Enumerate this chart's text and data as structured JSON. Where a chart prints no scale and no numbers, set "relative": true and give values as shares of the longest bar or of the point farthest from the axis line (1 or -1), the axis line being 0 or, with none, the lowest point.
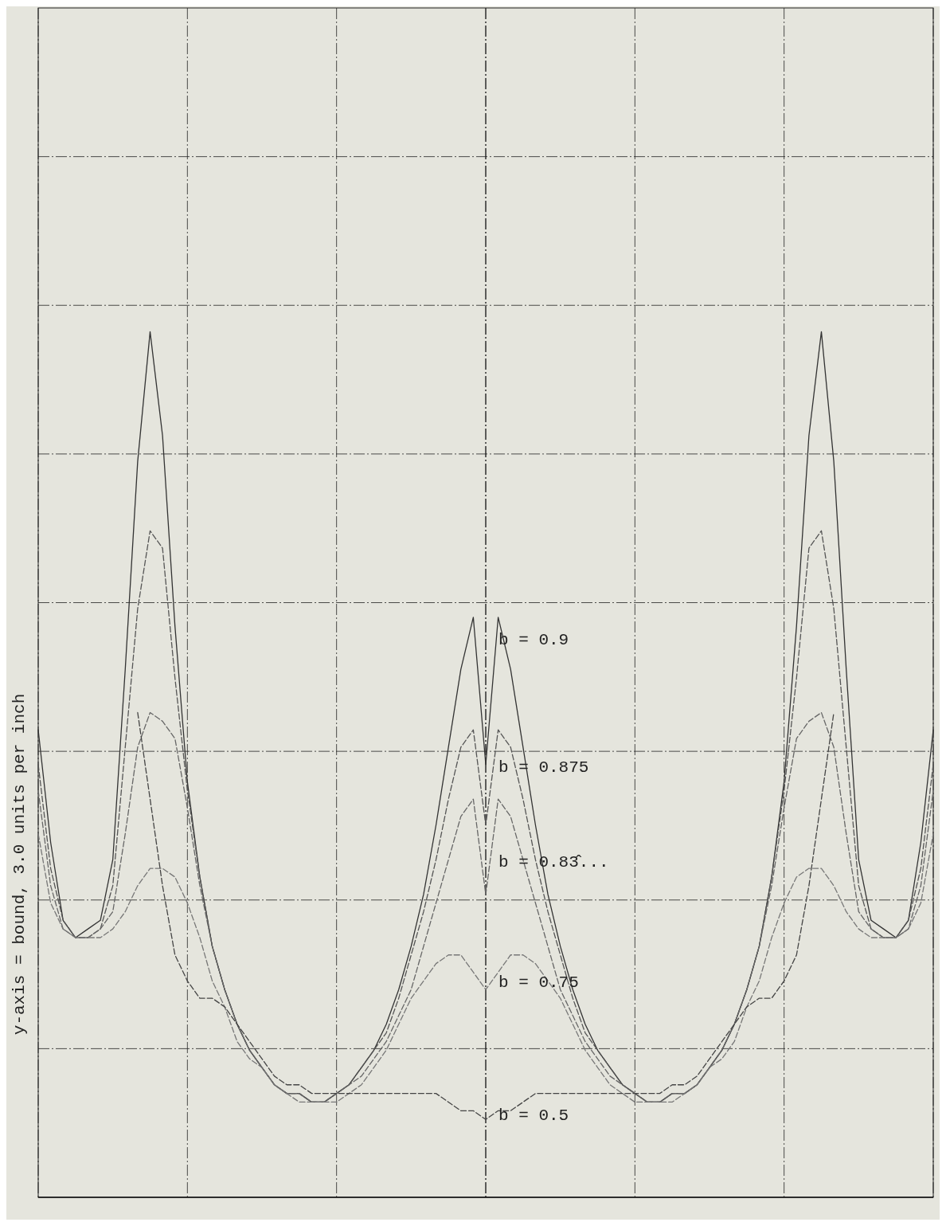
{
  "chart_data": {
    "type": "line",
    "relative": true,
    "ylabel": "y-axis = bound, 3.0 units per inch",
    "grid": true,
    "legend": false,
    "marker": "none",
    "categories": [
      null,
      null,
      null,
      null,
      null,
      null,
      null,
      null,
      null,
      null,
      null,
      null,
      null,
      null,
      null,
      null,
      null,
      null,
      null,
      null,
      null,
      null,
      null,
      null,
      null,
      null,
      null,
      null,
      null,
      null,
      null,
      null,
      null,
      null,
      null,
      null,
      null,
      null,
      null,
      null,
      null,
      null,
      null,
      null,
      null,
      null,
      null,
      null,
      null,
      null,
      null,
      null,
      null,
      null,
      null,
      null,
      null,
      null,
      null,
      null,
      null,
      null,
      null,
      null,
      null,
      null,
      null,
      null,
      null,
      null,
      null,
      null,
      null
    ],
    "series": [
      {
        "name": "b = 0.9",
        "color": "#333333",
        "line_style": "solid",
        "values": [
          0.54,
          0.41,
          0.32,
          0.3,
          0.31,
          0.32,
          0.39,
          0.61,
          0.85,
          1,
          0.88,
          0.66,
          0.48,
          0.37,
          0.29,
          0.24,
          0.2,
          0.17,
          0.15,
          0.13,
          0.12,
          0.12,
          0.11,
          0.11,
          0.12,
          0.13,
          0.15,
          0.17,
          0.2,
          0.24,
          0.29,
          0.35,
          0.43,
          0.52,
          0.61,
          0.67,
          0.5,
          0.67,
          0.61,
          0.52,
          0.43,
          0.35,
          0.29,
          0.24,
          0.2,
          0.17,
          0.15,
          0.13,
          0.12,
          0.11,
          0.11,
          0.12,
          0.12,
          0.13,
          0.15,
          0.17,
          0.2,
          0.24,
          0.29,
          0.37,
          0.48,
          0.66,
          0.88,
          1,
          0.85,
          0.61,
          0.39,
          0.32,
          0.31,
          0.3,
          0.32,
          0.41,
          0.54
        ]
      },
      {
        "name": "b = 0.875",
        "color": "#555555",
        "line_style": "dashed",
        "values": [
          0.5,
          0.38,
          0.32,
          0.3,
          0.3,
          0.31,
          0.36,
          0.52,
          0.68,
          0.77,
          0.75,
          0.6,
          0.47,
          0.37,
          0.29,
          0.24,
          0.2,
          0.17,
          0.15,
          0.13,
          0.12,
          0.12,
          0.11,
          0.11,
          0.12,
          0.13,
          0.15,
          0.17,
          0.19,
          0.23,
          0.28,
          0.33,
          0.39,
          0.46,
          0.52,
          0.54,
          0.43,
          0.54,
          0.52,
          0.46,
          0.39,
          0.33,
          0.28,
          0.23,
          0.19,
          0.17,
          0.15,
          0.13,
          0.12,
          0.11,
          0.11,
          0.12,
          0.12,
          0.13,
          0.15,
          0.17,
          0.2,
          0.24,
          0.29,
          0.37,
          0.47,
          0.6,
          0.75,
          0.77,
          0.68,
          0.52,
          0.36,
          0.31,
          0.3,
          0.3,
          0.32,
          0.38,
          0.5
        ]
      },
      {
        "name": "b = 0.83̂...",
        "color": "#666666",
        "line_style": "dashed",
        "values": [
          0.47,
          0.36,
          0.31,
          0.3,
          0.3,
          0.31,
          0.33,
          0.42,
          0.52,
          0.56,
          0.55,
          0.53,
          0.45,
          0.36,
          0.29,
          0.24,
          0.2,
          0.17,
          0.15,
          0.13,
          0.12,
          0.12,
          0.11,
          0.11,
          0.12,
          0.13,
          0.14,
          0.16,
          0.18,
          0.21,
          0.24,
          0.29,
          0.34,
          0.39,
          0.44,
          0.46,
          0.35,
          0.46,
          0.44,
          0.39,
          0.34,
          0.29,
          0.24,
          0.21,
          0.18,
          0.16,
          0.14,
          0.13,
          0.12,
          0.11,
          0.11,
          0.12,
          0.12,
          0.13,
          0.15,
          0.17,
          0.2,
          0.24,
          0.29,
          0.36,
          0.45,
          0.53,
          0.55,
          0.56,
          0.52,
          0.42,
          0.33,
          0.31,
          0.3,
          0.3,
          0.31,
          0.36,
          0.47
        ]
      },
      {
        "name": "b = 0.75",
        "color": "#777777",
        "line_style": "dashed",
        "values": [
          0.42,
          0.34,
          0.31,
          0.3,
          0.3,
          0.3,
          0.31,
          0.33,
          0.36,
          0.38,
          0.38,
          0.37,
          0.34,
          0.3,
          0.25,
          0.22,
          0.18,
          0.16,
          0.15,
          0.13,
          0.12,
          0.11,
          0.11,
          0.11,
          0.11,
          0.12,
          0.13,
          0.15,
          0.17,
          0.2,
          0.23,
          0.25,
          0.27,
          0.28,
          0.28,
          0.26,
          0.24,
          0.26,
          0.28,
          0.28,
          0.27,
          0.25,
          0.23,
          0.2,
          0.17,
          0.15,
          0.13,
          0.12,
          0.11,
          0.11,
          0.11,
          0.11,
          0.12,
          0.13,
          0.15,
          0.16,
          0.18,
          0.22,
          0.25,
          0.3,
          0.34,
          0.37,
          0.38,
          0.38,
          0.36,
          0.33,
          0.31,
          0.3,
          0.3,
          0.3,
          0.31,
          0.34,
          0.42
        ]
      },
      {
        "name": "b = 0.5",
        "color": "#444444",
        "line_style": "dashed",
        "values": [
          null,
          null,
          null,
          null,
          null,
          null,
          null,
          null,
          0.56,
          0.46,
          0.36,
          0.28,
          0.25,
          0.23,
          0.23,
          0.22,
          0.2,
          0.18,
          0.16,
          0.14,
          0.13,
          0.13,
          0.12,
          0.12,
          0.12,
          0.12,
          0.12,
          0.12,
          0.12,
          0.12,
          0.12,
          0.12,
          0.12,
          0.11,
          0.1,
          0.1,
          0.09,
          0.1,
          0.1,
          0.11,
          0.12,
          0.12,
          0.12,
          0.12,
          0.12,
          0.12,
          0.12,
          0.12,
          0.12,
          0.12,
          0.12,
          0.13,
          0.13,
          0.14,
          0.16,
          0.18,
          0.2,
          0.22,
          0.23,
          0.23,
          0.25,
          0.28,
          0.36,
          0.46,
          0.56,
          null,
          null,
          null,
          null,
          null,
          null,
          null,
          null
        ]
      }
    ]
  }
}
